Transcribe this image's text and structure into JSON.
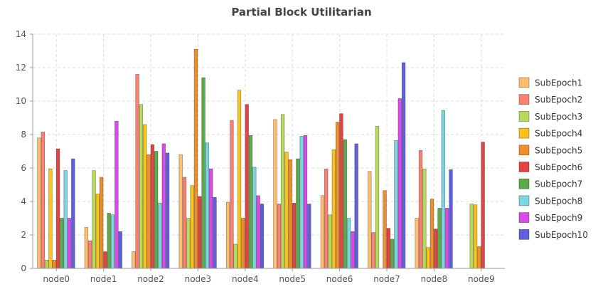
{
  "chart_data": {
    "type": "bar",
    "title": "Partial Block Utilitarian",
    "xlabel": "",
    "ylabel": "",
    "ylim": [
      0,
      14
    ],
    "yticks": [
      0,
      2,
      4,
      6,
      8,
      10,
      12,
      14
    ],
    "grid": true,
    "legend_position": "right",
    "categories": [
      "node0",
      "node1",
      "node2",
      "node3",
      "node4",
      "node5",
      "node6",
      "node7",
      "node8",
      "node9"
    ],
    "series": [
      {
        "name": "SubEpoch1",
        "color": "#fdbf6f",
        "values": [
          7.8,
          2.45,
          1.0,
          6.8,
          3.95,
          8.9,
          4.35,
          5.8,
          3.0,
          0
        ]
      },
      {
        "name": "SubEpoch2",
        "color": "#fb8072",
        "values": [
          8.15,
          1.65,
          11.6,
          5.45,
          8.85,
          3.85,
          5.95,
          2.15,
          7.05,
          0
        ]
      },
      {
        "name": "SubEpoch3",
        "color": "#b8d95a",
        "values": [
          0.5,
          5.85,
          9.8,
          3.0,
          1.45,
          9.2,
          3.2,
          8.5,
          5.95,
          3.85
        ]
      },
      {
        "name": "SubEpoch4",
        "color": "#f8c41c",
        "values": [
          5.95,
          4.45,
          8.6,
          4.95,
          10.65,
          6.95,
          7.1,
          0,
          1.25,
          3.8
        ]
      },
      {
        "name": "SubEpoch5",
        "color": "#ee8f2a",
        "values": [
          0.5,
          5.45,
          6.8,
          13.1,
          3.0,
          6.5,
          8.75,
          4.65,
          4.15,
          1.3
        ]
      },
      {
        "name": "SubEpoch6",
        "color": "#e04545",
        "values": [
          7.15,
          1.0,
          7.4,
          4.3,
          9.8,
          3.9,
          9.25,
          2.4,
          2.35,
          7.55
        ]
      },
      {
        "name": "SubEpoch7",
        "color": "#5ea94a",
        "values": [
          3.0,
          3.3,
          7.0,
          11.4,
          7.95,
          6.55,
          7.7,
          1.75,
          3.6,
          0
        ]
      },
      {
        "name": "SubEpoch8",
        "color": "#7ad6e0",
        "values": [
          5.85,
          3.2,
          3.9,
          7.5,
          6.05,
          7.9,
          3.0,
          7.65,
          9.45,
          0
        ]
      },
      {
        "name": "SubEpoch9",
        "color": "#d94be8",
        "values": [
          3.0,
          8.8,
          7.45,
          5.95,
          4.35,
          7.95,
          2.2,
          10.15,
          3.6,
          0
        ]
      },
      {
        "name": "SubEpoch10",
        "color": "#6060dc",
        "values": [
          6.55,
          2.2,
          6.9,
          4.25,
          3.85,
          3.85,
          7.45,
          12.3,
          5.9,
          0
        ]
      }
    ]
  }
}
